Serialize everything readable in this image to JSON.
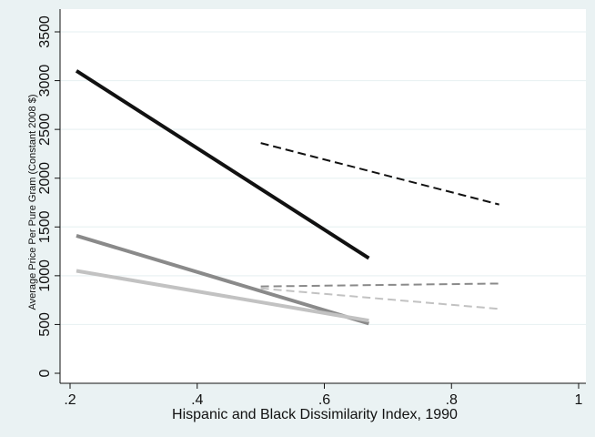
{
  "chart_data": {
    "type": "line",
    "title": "",
    "xlabel": "Hispanic and Black Dissimilarity Index, 1990",
    "ylabel": "Average Price Per Pure Gram (Constant 2008 $)",
    "xlim": [
      0.2,
      1.0
    ],
    "ylim": [
      0,
      3500
    ],
    "xticks": [
      0.2,
      0.4,
      0.6,
      0.8,
      1.0
    ],
    "xtick_labels": [
      ".2",
      ".4",
      ".6",
      ".8",
      "1"
    ],
    "yticks": [
      0,
      500,
      1000,
      1500,
      2000,
      2500,
      3000,
      3500
    ],
    "ytick_labels": [
      "0",
      "500",
      "1000",
      "1500",
      "2000",
      "2500",
      "3000",
      "3500"
    ],
    "grid": "horizontal",
    "legend": "none",
    "series": [
      {
        "x": [
          0.21,
          0.67
        ],
        "y": [
          3100,
          1180
        ],
        "color": "#111111",
        "style": "solid",
        "width": 4
      },
      {
        "x": [
          0.21,
          0.67
        ],
        "y": [
          1410,
          510
        ],
        "color": "#8a8a8a",
        "style": "solid",
        "width": 4
      },
      {
        "x": [
          0.21,
          0.67
        ],
        "y": [
          1050,
          540
        ],
        "color": "#c2c2c2",
        "style": "solid",
        "width": 4
      },
      {
        "x": [
          0.5,
          0.875
        ],
        "y": [
          2360,
          1730
        ],
        "color": "#111111",
        "style": "dashed",
        "width": 2
      },
      {
        "x": [
          0.5,
          0.875
        ],
        "y": [
          890,
          920
        ],
        "color": "#8a8a8a",
        "style": "dashed",
        "width": 2
      },
      {
        "x": [
          0.5,
          0.875
        ],
        "y": [
          870,
          660
        ],
        "color": "#c2c2c2",
        "style": "dashed",
        "width": 2
      }
    ]
  }
}
